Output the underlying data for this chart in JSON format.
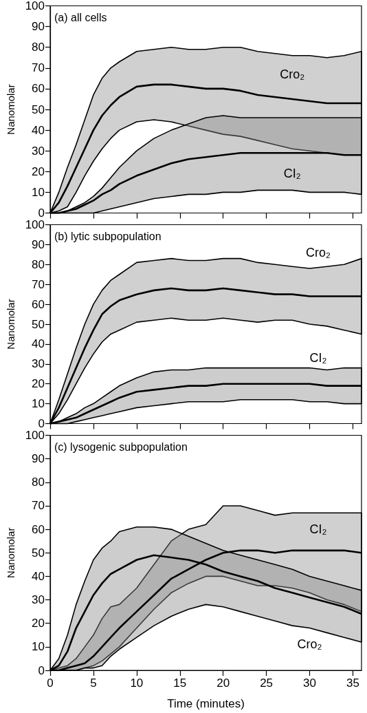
{
  "chart_data": [
    {
      "type": "line",
      "title": "(a) all cells",
      "ylabel": "Nanomolar",
      "x": [
        0,
        1,
        2,
        3,
        4,
        5,
        6,
        7,
        8,
        10,
        12,
        14,
        16,
        18,
        20,
        22,
        24,
        26,
        28,
        30,
        32,
        34,
        36
      ],
      "xlim": [
        0,
        36
      ],
      "xticks": [
        0,
        5,
        10,
        15,
        20,
        25,
        30,
        35
      ],
      "ylim": [
        0,
        100
      ],
      "yticks": [
        0,
        10,
        20,
        30,
        40,
        50,
        60,
        70,
        80,
        90,
        100
      ],
      "tick_labels": "y",
      "series": [
        {
          "name": "Cro₂",
          "color": "#000000",
          "values": [
            0,
            5,
            13,
            22,
            31,
            40,
            47,
            52,
            56,
            61,
            62,
            62,
            61,
            60,
            60,
            59,
            57,
            56,
            55,
            54,
            53,
            53,
            53
          ],
          "lower": [
            0,
            1,
            3,
            10,
            18,
            25,
            31,
            36,
            40,
            44,
            45,
            44,
            42,
            40,
            38,
            37,
            35,
            33,
            31,
            30,
            29,
            28,
            28
          ],
          "upper": [
            0,
            10,
            22,
            33,
            45,
            57,
            65,
            70,
            73,
            78,
            79,
            80,
            79,
            79,
            80,
            80,
            78,
            77,
            76,
            76,
            75,
            76,
            78
          ]
        },
        {
          "name": "CI₂",
          "color": "#000000",
          "values": [
            0,
            0,
            1,
            2,
            4,
            6,
            9,
            11,
            14,
            18,
            21,
            24,
            26,
            27,
            28,
            29,
            29,
            29,
            29,
            29,
            29,
            28,
            28
          ],
          "lower": [
            0,
            0,
            0,
            0,
            0,
            0,
            1,
            2,
            3,
            5,
            7,
            8,
            9,
            9,
            10,
            10,
            11,
            11,
            11,
            10,
            10,
            10,
            9
          ],
          "upper": [
            0,
            0,
            1,
            3,
            5,
            8,
            12,
            17,
            22,
            30,
            36,
            40,
            43,
            46,
            47,
            46,
            46,
            46,
            46,
            46,
            46,
            46,
            46
          ]
        }
      ]
    },
    {
      "type": "line",
      "title": "(b) lytic subpopulation",
      "ylabel": "Nanomolar",
      "x": [
        0,
        1,
        2,
        3,
        4,
        5,
        6,
        7,
        8,
        10,
        12,
        14,
        16,
        18,
        20,
        22,
        24,
        26,
        28,
        30,
        32,
        34,
        36
      ],
      "xlim": [
        0,
        36
      ],
      "xticks": [
        0,
        5,
        10,
        15,
        20,
        25,
        30,
        35
      ],
      "ylim": [
        0,
        100
      ],
      "yticks": [
        0,
        10,
        20,
        30,
        40,
        50,
        60,
        70,
        80,
        90,
        100
      ],
      "tick_labels": "y",
      "series": [
        {
          "name": "Cro₂",
          "color": "#000000",
          "values": [
            0,
            8,
            18,
            28,
            38,
            47,
            55,
            59,
            62,
            65,
            67,
            68,
            67,
            67,
            68,
            67,
            66,
            65,
            65,
            64,
            64,
            64,
            64
          ],
          "lower": [
            0,
            5,
            12,
            20,
            28,
            35,
            41,
            45,
            47,
            51,
            52,
            53,
            52,
            52,
            53,
            52,
            51,
            52,
            52,
            50,
            49,
            47,
            45
          ],
          "upper": [
            0,
            12,
            25,
            38,
            50,
            60,
            67,
            72,
            75,
            81,
            82,
            83,
            82,
            82,
            83,
            83,
            81,
            80,
            79,
            78,
            79,
            80,
            83
          ]
        },
        {
          "name": "CI₂",
          "color": "#000000",
          "values": [
            0,
            1,
            2,
            3,
            5,
            7,
            9,
            11,
            13,
            16,
            17,
            18,
            19,
            19,
            20,
            20,
            20,
            20,
            20,
            20,
            19,
            19,
            19
          ],
          "lower": [
            0,
            0,
            0,
            1,
            2,
            3,
            4,
            5,
            6,
            8,
            9,
            10,
            11,
            11,
            11,
            12,
            12,
            12,
            12,
            11,
            11,
            10,
            10
          ],
          "upper": [
            0,
            1,
            3,
            5,
            8,
            10,
            13,
            16,
            19,
            23,
            26,
            27,
            27,
            28,
            28,
            28,
            28,
            28,
            28,
            28,
            27,
            28,
            28
          ]
        }
      ]
    },
    {
      "type": "line",
      "title": "(c) lysogenic subpopulation",
      "xlabel": "Time (minutes)",
      "ylabel": "Nanomolar",
      "x": [
        0,
        1,
        2,
        3,
        4,
        5,
        6,
        7,
        8,
        10,
        12,
        14,
        16,
        18,
        20,
        22,
        24,
        26,
        28,
        30,
        32,
        34,
        36
      ],
      "xlim": [
        0,
        36
      ],
      "xticks": [
        0,
        5,
        10,
        15,
        20,
        25,
        30,
        35
      ],
      "ylim": [
        0,
        100
      ],
      "yticks": [
        0,
        10,
        20,
        30,
        40,
        50,
        60,
        70,
        80,
        90,
        100
      ],
      "series": [
        {
          "name": "CI₂",
          "color": "#000000",
          "values": [
            0,
            0,
            1,
            2,
            3,
            6,
            10,
            14,
            18,
            25,
            32,
            39,
            43,
            47,
            50,
            51,
            51,
            50,
            51,
            51,
            51,
            51,
            50
          ],
          "lower": [
            0,
            0,
            0,
            0,
            1,
            2,
            4,
            7,
            10,
            18,
            26,
            33,
            37,
            40,
            40,
            38,
            36,
            36,
            35,
            33,
            30,
            28,
            25
          ],
          "upper": [
            0,
            1,
            2,
            5,
            10,
            15,
            22,
            27,
            28,
            35,
            45,
            55,
            60,
            62,
            70,
            70,
            68,
            66,
            67,
            67,
            67,
            67,
            67
          ]
        },
        {
          "name": "Cro₂",
          "color": "#000000",
          "values": [
            0,
            2,
            8,
            18,
            25,
            32,
            37,
            41,
            43,
            47,
            49,
            48,
            47,
            45,
            42,
            40,
            38,
            35,
            33,
            31,
            29,
            27,
            24
          ],
          "lower": [
            0,
            0,
            0,
            0,
            1,
            1,
            2,
            6,
            9,
            14,
            19,
            23,
            26,
            28,
            27,
            25,
            23,
            21,
            19,
            18,
            16,
            14,
            12
          ],
          "upper": [
            0,
            5,
            15,
            28,
            38,
            47,
            52,
            55,
            59,
            61,
            61,
            60,
            57,
            54,
            51,
            49,
            47,
            45,
            43,
            40,
            38,
            36,
            34
          ]
        }
      ]
    }
  ]
}
